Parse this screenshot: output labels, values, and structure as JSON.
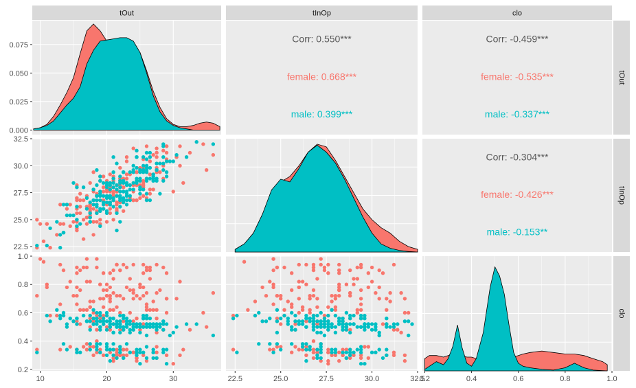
{
  "chart_data": {
    "type": "pairs",
    "variables": [
      "tOut",
      "tInOp",
      "clo"
    ],
    "groups": [
      {
        "name": "female",
        "color": "#F8766D"
      },
      {
        "name": "male",
        "color": "#00BFC4"
      }
    ],
    "colors": {
      "panel_bg": "#EBEBEB",
      "grid": "#FFFFFF",
      "strip_bg": "#D9D9D9",
      "overall_text": "#595959"
    },
    "axes": {
      "tOut": {
        "range": [
          8.8,
          37.2
        ],
        "ticks": [
          10,
          20,
          30
        ],
        "tick_labels": [
          "10",
          "20",
          "30"
        ]
      },
      "tInOp": {
        "range": [
          22.0,
          32.5
        ],
        "ticks": [
          22.5,
          25.0,
          27.5,
          30.0,
          32.5
        ],
        "tick_labels": [
          "22.5",
          "25.0",
          "27.5",
          "30.0",
          "32.5"
        ]
      },
      "clo": {
        "range": [
          0.19,
          1.0
        ],
        "ticks": [
          0.2,
          0.4,
          0.6,
          0.8,
          1.0
        ],
        "tick_labels_x": [
          "0.2",
          "0.4",
          "0.6",
          "0.8",
          "1.0"
        ],
        "tick_labels_y": [
          "0.2",
          "0.4",
          "0.6",
          "0.8",
          "1.0"
        ]
      }
    },
    "density_ylim": {
      "tOut": [
        -0.004,
        0.096
      ],
      "tInOp": [
        0,
        0.21
      ],
      "clo": [
        0,
        7.5
      ]
    },
    "density_yaxis": {
      "ticks": [
        0.0,
        0.025,
        0.05,
        0.075
      ],
      "tick_labels": [
        "0.000",
        "0.025",
        "0.050",
        "0.075"
      ]
    },
    "densities": {
      "tOut": {
        "x": [
          9,
          10,
          11,
          12,
          13,
          14,
          15,
          16,
          17,
          18,
          19,
          20,
          21,
          22,
          23,
          24,
          25,
          26,
          27,
          28,
          29,
          30,
          31,
          32,
          33,
          34,
          35,
          36,
          37
        ],
        "female": [
          0.001,
          0.002,
          0.005,
          0.012,
          0.022,
          0.033,
          0.046,
          0.067,
          0.087,
          0.093,
          0.087,
          0.078,
          0.078,
          0.08,
          0.08,
          0.077,
          0.068,
          0.052,
          0.034,
          0.02,
          0.01,
          0.005,
          0.003,
          0.003,
          0.004,
          0.006,
          0.007,
          0.006,
          0.003
        ],
        "male": [
          0.001,
          0.002,
          0.004,
          0.008,
          0.015,
          0.022,
          0.028,
          0.038,
          0.058,
          0.07,
          0.078,
          0.079,
          0.08,
          0.081,
          0.081,
          0.078,
          0.068,
          0.05,
          0.03,
          0.016,
          0.008,
          0.004,
          0.002,
          0.001,
          0.0,
          0.0,
          0.0,
          0.0,
          0.0
        ]
      },
      "tInOp": {
        "x": [
          22.5,
          23.0,
          23.5,
          24.0,
          24.5,
          25.0,
          25.5,
          26.0,
          26.5,
          27.0,
          27.5,
          28.0,
          28.5,
          29.0,
          29.5,
          30.0,
          30.5,
          31.0,
          31.5,
          32.0,
          32.5
        ],
        "female": [
          0.005,
          0.015,
          0.035,
          0.07,
          0.11,
          0.13,
          0.14,
          0.16,
          0.185,
          0.2,
          0.195,
          0.17,
          0.14,
          0.11,
          0.08,
          0.06,
          0.045,
          0.035,
          0.02,
          0.01,
          0.005
        ],
        "male": [
          0.005,
          0.015,
          0.035,
          0.07,
          0.115,
          0.135,
          0.13,
          0.155,
          0.185,
          0.198,
          0.185,
          0.165,
          0.135,
          0.1,
          0.065,
          0.035,
          0.015,
          0.007,
          0.003,
          0.001,
          0.0
        ]
      },
      "clo": {
        "x": [
          0.2,
          0.22,
          0.25,
          0.28,
          0.3,
          0.32,
          0.34,
          0.36,
          0.38,
          0.4,
          0.42,
          0.45,
          0.48,
          0.5,
          0.52,
          0.54,
          0.56,
          0.58,
          0.6,
          0.62,
          0.65,
          0.7,
          0.75,
          0.8,
          0.84,
          0.88,
          0.92,
          0.96,
          0.98
        ],
        "female": [
          0.8,
          1.0,
          1.0,
          0.9,
          1.0,
          1.1,
          1.2,
          1.0,
          0.9,
          0.9,
          0.8,
          0.8,
          0.8,
          0.8,
          0.8,
          0.8,
          0.8,
          0.9,
          1.0,
          1.1,
          1.2,
          1.3,
          1.2,
          1.1,
          1.1,
          1.0,
          0.8,
          0.6,
          0.4
        ],
        "male": [
          0.1,
          0.3,
          0.6,
          0.4,
          0.8,
          1.6,
          3.0,
          1.5,
          0.5,
          0.3,
          0.8,
          2.5,
          5.5,
          6.8,
          6.2,
          5.0,
          3.0,
          1.2,
          0.5,
          0.3,
          0.2,
          0.1,
          0.05,
          0.2,
          0.5,
          0.2,
          0.05,
          0.02,
          0.0
        ]
      }
    },
    "correlations": [
      {
        "row": 0,
        "col": 1,
        "overall": "Corr: 0.550***",
        "female": "female: 0.668***",
        "male": "male: 0.399***"
      },
      {
        "row": 0,
        "col": 2,
        "overall": "Corr: -0.459***",
        "female": "female: -0.535***",
        "male": "male: -0.337***"
      },
      {
        "row": 1,
        "col": 2,
        "overall": "Corr: -0.304***",
        "female": "female: -0.426***",
        "male": "male: -0.153**"
      }
    ],
    "scatter_points_per_group": 200
  }
}
